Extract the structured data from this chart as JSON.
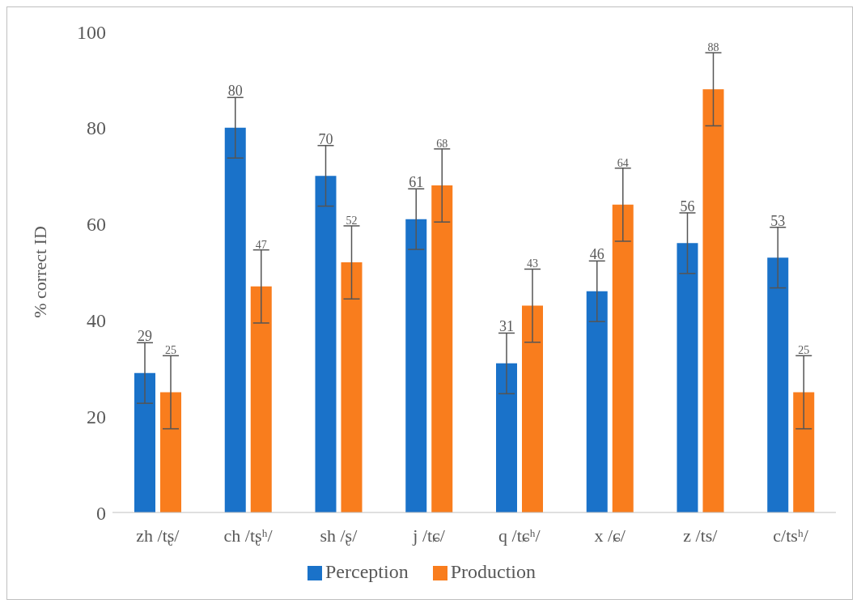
{
  "chart_data": {
    "type": "bar",
    "ylabel": "% correct ID",
    "categories": [
      "zh /tʂ/",
      "ch /tʂʰ/",
      "sh /ʂ/",
      "j /tɕ/",
      "q /tɕʰ/",
      "x /ɕ/",
      "z /ts/",
      "c/tsʰ/"
    ],
    "series": [
      {
        "name": "Perception",
        "color": "#1a72c9",
        "values": [
          29,
          80,
          70,
          61,
          31,
          46,
          56,
          53
        ],
        "errors": [
          6.3,
          6.3,
          6.3,
          6.3,
          6.3,
          6.3,
          6.3,
          6.3
        ]
      },
      {
        "name": "Production",
        "color": "#f97d1d",
        "values": [
          25,
          47,
          52,
          68,
          43,
          64,
          88,
          25
        ],
        "errors": [
          7.6,
          7.6,
          7.6,
          7.6,
          7.6,
          7.6,
          7.6,
          7.6
        ]
      }
    ],
    "ylim": [
      0,
      100
    ],
    "yticks": [
      0,
      20,
      40,
      60,
      80,
      100
    ],
    "data_labels": true,
    "legend": "bottom"
  }
}
